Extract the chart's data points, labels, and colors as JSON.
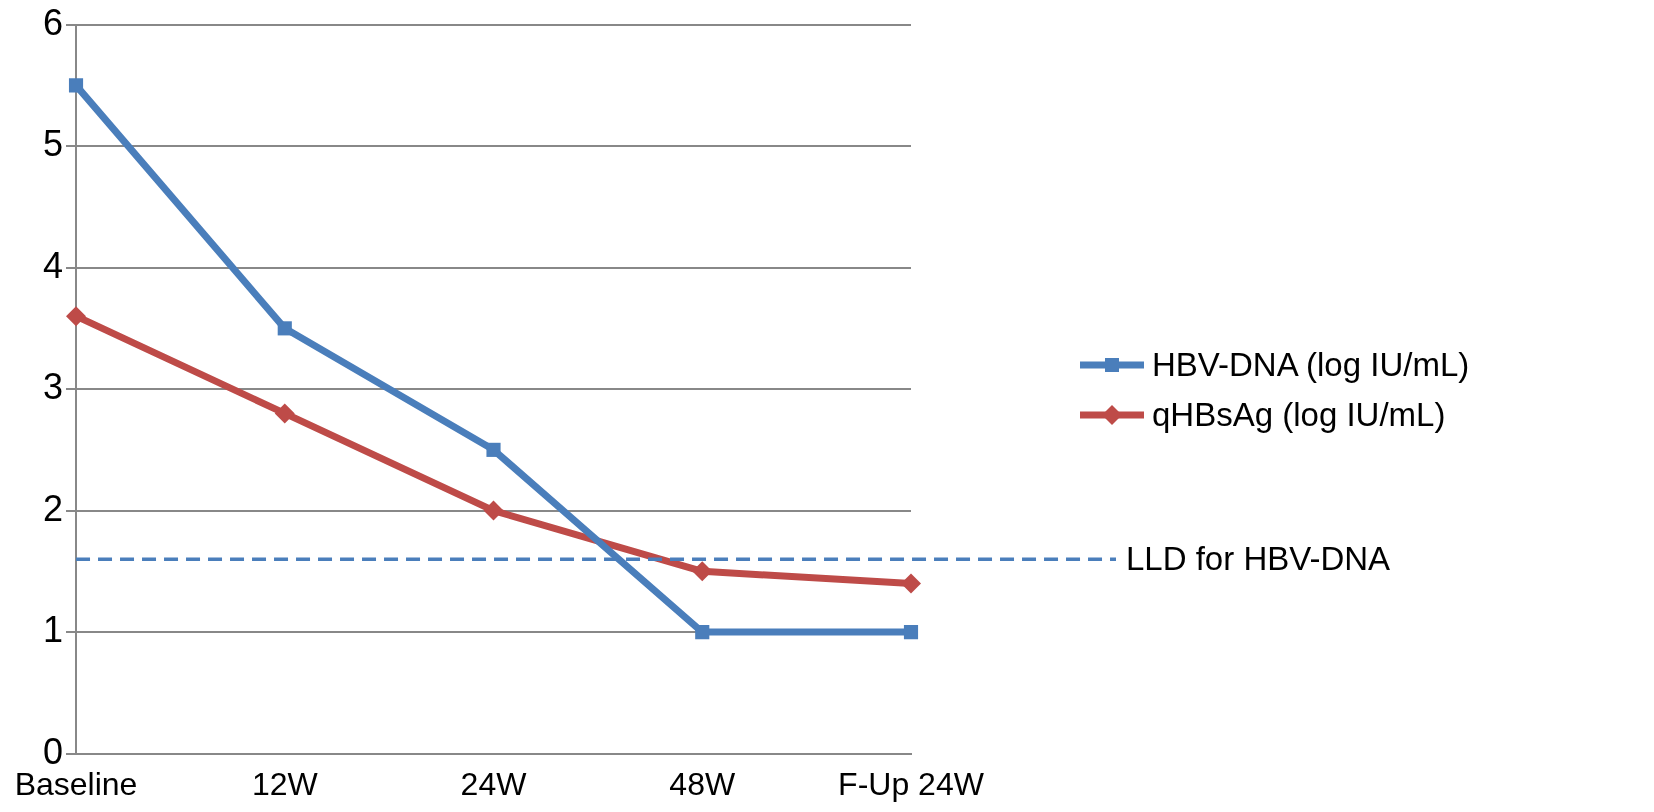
{
  "chart_data": {
    "type": "line",
    "categories": [
      "Baseline",
      "12W",
      "24W",
      "48W",
      "F-Up 24W"
    ],
    "series": [
      {
        "name": "HBV-DNA (log IU/mL)",
        "color": "#4a7ebb",
        "marker": "square",
        "values": [
          5.5,
          3.5,
          2.5,
          1,
          1
        ]
      },
      {
        "name": "qHBsAg (log IU/mL)",
        "color": "#be4b48",
        "marker": "diamond",
        "values": [
          3.6,
          2.8,
          2.0,
          1.5,
          1.4
        ]
      }
    ],
    "ylim": [
      0,
      6
    ],
    "yticks": [
      0,
      1,
      2,
      3,
      4,
      5,
      6
    ],
    "grid": "y",
    "legend": "right",
    "line_style": "solid",
    "ref_lines": [
      {
        "axis": "y",
        "value": 1.6,
        "label": "LLD for HBV-DNA",
        "color": "#4a7ebb",
        "line_style": "dashed"
      }
    ]
  }
}
